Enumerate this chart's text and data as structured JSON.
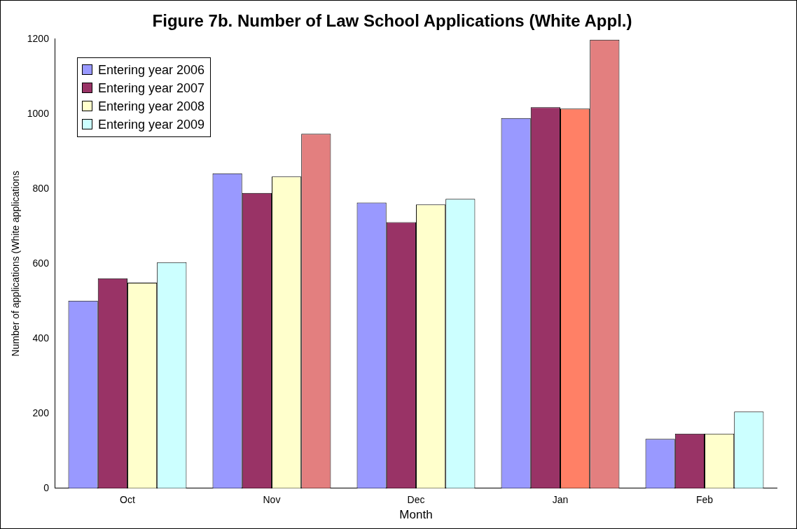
{
  "chart_data": {
    "type": "bar",
    "title": "Figure 7b. Number of Law School Applications (White Appl.)",
    "xlabel": "Month",
    "ylabel": "Number of applications (White applications",
    "categories": [
      "Oct",
      "Nov",
      "Dec",
      "Jan",
      "Feb"
    ],
    "series": [
      {
        "name": "Entering year 2006",
        "color": "#9999ff",
        "values": [
          501,
          841,
          763,
          989,
          132
        ]
      },
      {
        "name": "Entering year 2007",
        "color": "#993366",
        "values": [
          561,
          789,
          711,
          1018,
          146
        ]
      },
      {
        "name": "Entering year 2008",
        "color": "#ffffcc",
        "colors": [
          "#ffffcc",
          "#ffffcc",
          "#ffffcc",
          "#ff8066",
          "#ffffcc"
        ],
        "values": [
          549,
          833,
          758,
          1014,
          146
        ]
      },
      {
        "name": "Entering year 2009",
        "color": "#ccffff",
        "colors": [
          "#ccffff",
          "#e37f7f",
          "#ccffff",
          "#e37f7f",
          "#ccffff"
        ],
        "values": [
          604,
          947,
          773,
          1198,
          205
        ]
      }
    ],
    "ylim": [
      0,
      1200
    ],
    "yticks": [
      0,
      200,
      400,
      600,
      800,
      1000,
      1200
    ],
    "grid": false,
    "legend": "top left"
  }
}
